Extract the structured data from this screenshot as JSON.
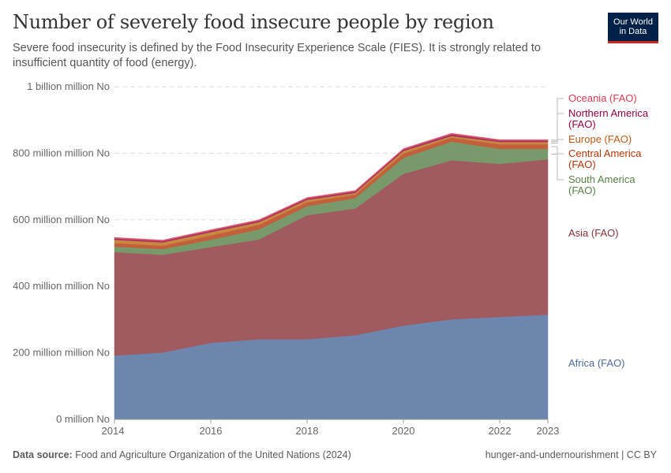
{
  "header": {
    "title": "Number of severely food insecure people by region",
    "subtitle": "Severe food insecurity is defined by the Food Insecurity Experience Scale (FIES). It is strongly related to insufficient quantity of food (energy).",
    "logo_line1": "Our World",
    "logo_line2": "in Data"
  },
  "footer": {
    "source_label": "Data source:",
    "source_text": "Food and Agriculture Organization of the United Nations (2024)",
    "right": "hunger-and-undernourishment | CC BY"
  },
  "chart_data": {
    "type": "area",
    "stacked": true,
    "x": [
      2014,
      2015,
      2016,
      2017,
      2018,
      2019,
      2020,
      2021,
      2022,
      2023
    ],
    "x_tick_labels": [
      "2014",
      "2016",
      "2018",
      "2020",
      "2022",
      "2023"
    ],
    "x_ticks": [
      2014,
      2016,
      2018,
      2020,
      2022,
      2023
    ],
    "ylim": [
      0,
      1000
    ],
    "y_ticks": [
      0,
      200,
      400,
      600,
      800,
      1000
    ],
    "y_tick_labels": [
      "0 million No",
      "200 million million No",
      "400 million million No",
      "600 million million No",
      "800 million million No",
      "1 billion million No"
    ],
    "grid": "horizontal dashed",
    "legend": "right, inline labels",
    "series": [
      {
        "name": "Africa (FAO)",
        "color": "#6d86ad",
        "label_color": "#4c6a9c",
        "values": [
          192,
          201,
          230,
          241,
          241,
          253,
          282,
          301,
          308,
          315
        ]
      },
      {
        "name": "Asia (FAO)",
        "color": "#a05a60",
        "label_color": "#883039",
        "values": [
          311,
          294,
          288,
          300,
          373,
          381,
          456,
          478,
          460,
          467
        ]
      },
      {
        "name": "South America (FAO)",
        "color": "#789a6a",
        "label_color": "#578145",
        "values": [
          16,
          17,
          22,
          30,
          27,
          31,
          48,
          56,
          45,
          31
        ]
      },
      {
        "name": "Central America (FAO)",
        "color": "#c2603c",
        "label_color": "#b13507",
        "values": [
          11,
          10,
          13,
          14,
          12,
          11,
          13,
          12,
          14,
          14
        ]
      },
      {
        "name": "Europe (FAO)",
        "color": "#c98740",
        "label_color": "#c05917",
        "values": [
          10,
          10,
          10,
          8,
          7,
          5,
          8,
          5,
          7,
          7
        ]
      },
      {
        "name": "Northern America (FAO)",
        "color": "#a53060",
        "label_color": "#970046",
        "values": [
          4,
          4,
          4,
          4,
          4,
          4,
          4,
          5,
          4,
          4
        ]
      },
      {
        "name": "Oceania (FAO)",
        "color": "#dd5870",
        "label_color": "#d73c50",
        "values": [
          3,
          3,
          3,
          3,
          3,
          3,
          3,
          3,
          3,
          3
        ]
      }
    ]
  }
}
